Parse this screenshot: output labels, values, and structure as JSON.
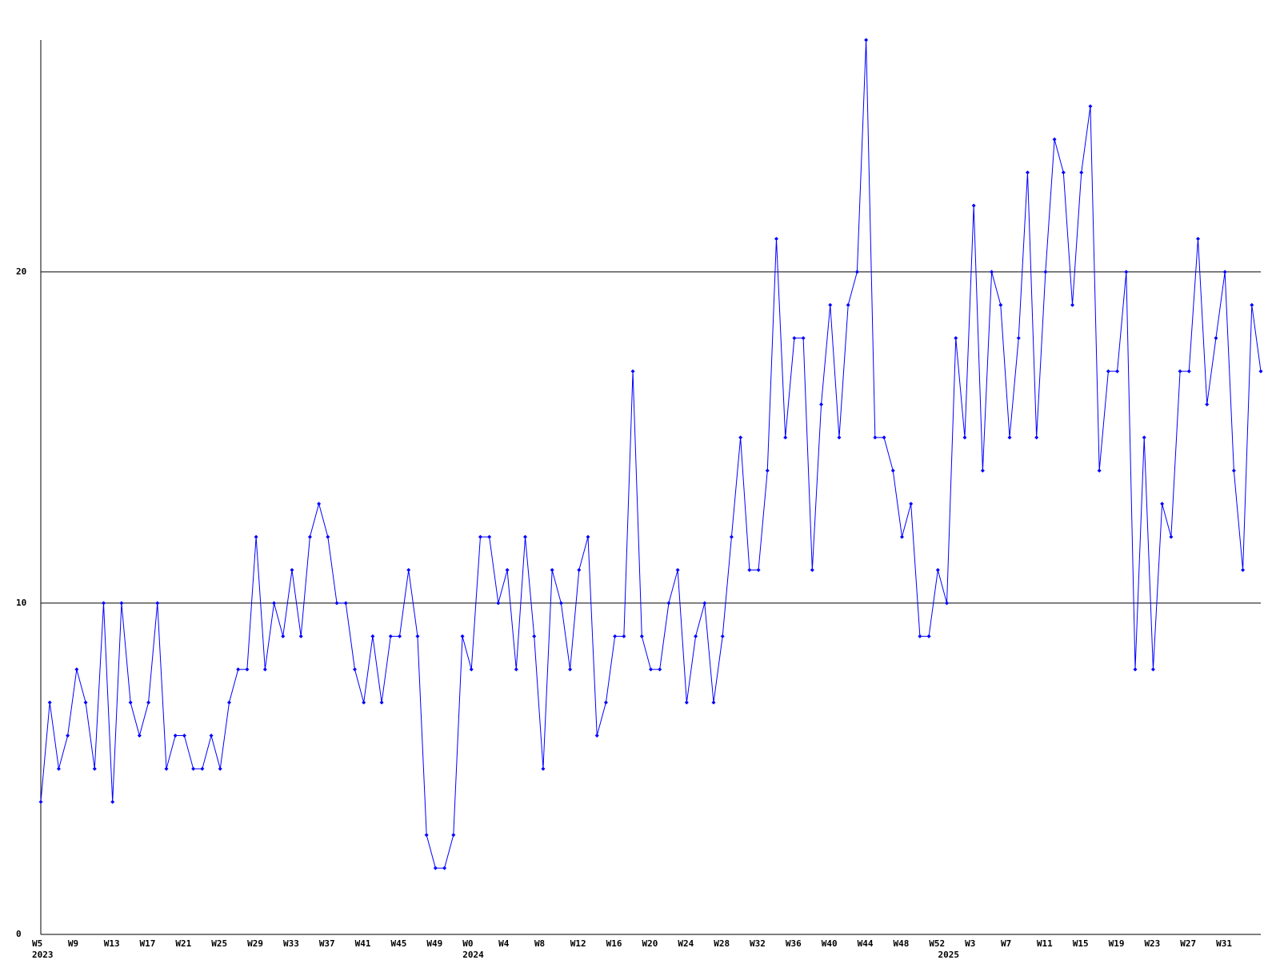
{
  "chart_data": {
    "type": "line",
    "color": "#0000ff",
    "grid": true,
    "ylim": [
      0,
      27
    ],
    "yticks": [
      0,
      10,
      20
    ],
    "categories": [
      "W5",
      null,
      null,
      null,
      "W9",
      null,
      null,
      null,
      "W13",
      null,
      null,
      null,
      "W17",
      null,
      null,
      null,
      "W21",
      null,
      null,
      null,
      "W25",
      null,
      null,
      null,
      "W29",
      null,
      null,
      null,
      "W33",
      null,
      null,
      null,
      "W37",
      null,
      null,
      null,
      "W41",
      null,
      null,
      null,
      "W45",
      null,
      null,
      null,
      "W49",
      null,
      null,
      null,
      "W0",
      null,
      null,
      null,
      "W4",
      null,
      null,
      null,
      "W8",
      null,
      null,
      null,
      "W12",
      null,
      null,
      null,
      "W16",
      null,
      null,
      null,
      "W20",
      null,
      null,
      null,
      "W24",
      null,
      null,
      null,
      "W28",
      null,
      null,
      null,
      "W32",
      null,
      null,
      null,
      "W36",
      null,
      null,
      null,
      "W40",
      null,
      null,
      null,
      "W44",
      null,
      null,
      null,
      "W48",
      null,
      null,
      null,
      "W52",
      null,
      null,
      null,
      "W3",
      null,
      null,
      null,
      "W7",
      null,
      null,
      null,
      "W11",
      null,
      null,
      null,
      "W15",
      null,
      null,
      null,
      "W19",
      null,
      null,
      null,
      "W23",
      null,
      null,
      null,
      "W27",
      null,
      null,
      null,
      "W31",
      null,
      null,
      null,
      null
    ],
    "years": [
      "2023",
      null,
      null,
      null,
      null,
      null,
      null,
      null,
      null,
      null,
      null,
      null,
      null,
      null,
      null,
      null,
      null,
      null,
      null,
      null,
      null,
      null,
      null,
      null,
      null,
      null,
      null,
      null,
      null,
      null,
      null,
      null,
      null,
      null,
      null,
      null,
      null,
      null,
      null,
      null,
      null,
      null,
      null,
      null,
      null,
      null,
      null,
      null,
      "2024",
      null,
      null,
      null,
      null,
      null,
      null,
      null,
      null,
      null,
      null,
      null,
      null,
      null,
      null,
      null,
      null,
      null,
      null,
      null,
      null,
      null,
      null,
      null,
      null,
      null,
      null,
      null,
      null,
      null,
      null,
      null,
      null,
      null,
      null,
      null,
      null,
      null,
      null,
      null,
      null,
      null,
      null,
      null,
      null,
      null,
      null,
      null,
      null,
      null,
      null,
      null,
      null,
      "2025",
      null,
      null,
      null,
      null,
      null,
      null,
      null,
      null,
      null,
      null,
      null,
      null,
      null,
      null,
      null,
      null,
      null,
      null,
      null,
      null,
      null,
      null,
      null,
      null,
      null,
      null,
      null,
      null,
      null,
      null,
      null,
      null,
      null,
      null,
      null
    ],
    "values": [
      4,
      7,
      5,
      6,
      8,
      7,
      5,
      10,
      4,
      10,
      7,
      6,
      7,
      10,
      5,
      6,
      6,
      5,
      5,
      6,
      5,
      7,
      8,
      8,
      12,
      8,
      10,
      9,
      11,
      9,
      12,
      13,
      12,
      10,
      10,
      8,
      7,
      9,
      7,
      9,
      9,
      11,
      9,
      3,
      2,
      2,
      3,
      9,
      8,
      12,
      12,
      10,
      11,
      8,
      12,
      9,
      5,
      11,
      10,
      8,
      11,
      12,
      6,
      7,
      9,
      9,
      17,
      9,
      8,
      8,
      10,
      11,
      7,
      9,
      10,
      7,
      9,
      12,
      15,
      11,
      11,
      14,
      21,
      15,
      18,
      18,
      11,
      16,
      19,
      15,
      19,
      20,
      27,
      15,
      15,
      14,
      12,
      13,
      9,
      9,
      11,
      10,
      18,
      15,
      22,
      14,
      20,
      19,
      15,
      18,
      23,
      15,
      20,
      24,
      23,
      19,
      23,
      25,
      14,
      17,
      17,
      20,
      8,
      15,
      8,
      13,
      12,
      17,
      17,
      21,
      16,
      18,
      20,
      14,
      11,
      19,
      17
    ]
  }
}
